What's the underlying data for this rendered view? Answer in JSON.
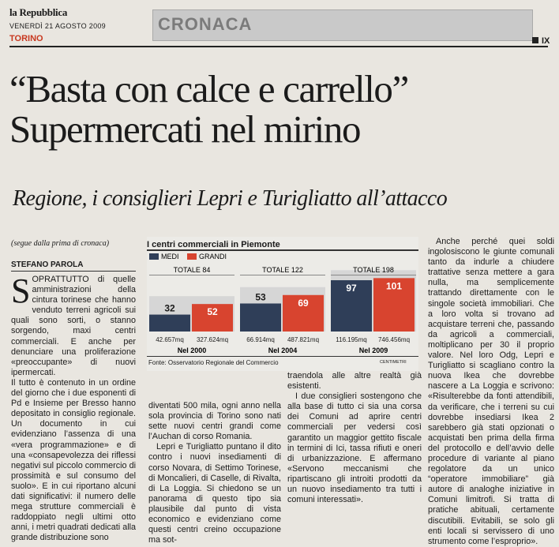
{
  "header": {
    "masthead": "la Repubblica",
    "date": "VENERDÌ 21 AGOSTO 2009",
    "city": "TORINO",
    "section": "CRONACA",
    "page": "IX"
  },
  "article": {
    "headline_line1": "“Basta con calce e carrello”",
    "headline_line2": "Supermercati nel mirino",
    "subheadline": "Regione, i consiglieri Lepri e Turigliatto all’attacco",
    "segue": "(segue dalla prima di cronaca)",
    "byline": "STEFANO PAROLA",
    "col1_dropcap": "S",
    "col1_p1": "OPRATTUTTO di quelle amministrazioni della cintura torinese che hanno venduto terreni agricoli sui quali sono sorti, o stanno sorgendo, maxi centri commerciali. E anche per denunciare una proliferazione «preoccupante» di nuovi ipermercati.",
    "col1_p2": "Il tutto è contenuto in un ordine del giorno che i due esponenti di Pd e Insieme per Bresso hanno depositato in consiglio regionale. Un documento in cui evidenziano l’assenza di una «vera programmazione» e di una «consapevolezza dei riflessi negativi sul piccolo commercio di prossimità e sul consumo del suolo». E in cui riportano alcuni dati significativi: il numero delle mega strutture commerciali è raddoppiato negli ultimi otto anni, i metri quadrati dedicati alla grande distribuzione sono",
    "col2_p1": "diventati 500 mila, ogni anno nella sola provincia di Torino sono nati sette nuovi centri grandi come l’Auchan di corso Romania.",
    "col2_p2": "Lepri e Turigliatto puntano il dito contro i nuovi insediamenti di corso Novara, di Settimo Torinese, di Moncalieri, di Caselle, di Rivalta, di La Loggia. Si chiedono se un panorama di questo tipo sia plausibile dal punto di vista economico e evidenziano come questi centri creino occupazione ma sot-",
    "col3_p1": "traendola alle altre realtà già esistenti.",
    "col3_p2": "I due consiglieri sostengono che alla base di tutto ci sia una corsa dei Comuni ad aprire centri commerciali per vedersi così garantito un maggior gettito fiscale in termini di Ici, tassa rifiuti e oneri di urbanizzazione. E affermano «Servono meccanismi che ripartiscano gli introiti prodotti da un nuovo insediamento tra tutti i comuni interessati».",
    "col4_p1": "Anche perché quei soldi ingolosiscono le giunte comunali tanto da indurle a chiudere trattative senza mettere a gara nulla, ma semplicemente trattando direttamente con le singole società immobiliari. Che a loro volta si trovano ad acquistare terreni che, passando da agricoli a commerciali, moltiplicano per 30 il proprio valore. Nel loro Odg, Lepri e Turigliatto si scagliano contro la nuova Ikea che dovrebbe nascere a La Loggia e scrivono: «Risulterebbe da fonti attendibili, da verificare, che i terreni su cui dovrebbe insediarsi Ikea 2 sarebbero già stati opzionati o acquistati ben prima della firma del protocollo e dell’avvio delle procedure di variante al piano regolatore da un unico “operatore immobiliare” già autore di analoghe iniziative in Comuni limitrofi. Si tratta di pratiche abituali, certamente discutibili. Evitabili, se solo gli enti locali si servissero di uno strumento come l’esproprio»."
  },
  "chart_data": {
    "type": "bar",
    "title": "I centri commerciali in Piemonte",
    "categories": [
      "Nel 2000",
      "Nel 2004",
      "Nel 2009"
    ],
    "totals_labels": [
      "TOTALE 84",
      "TOTALE 122",
      "TOTALE 198"
    ],
    "series": [
      {
        "name": "MEDI",
        "color": "#2f3e58",
        "values": [
          32,
          53,
          97
        ],
        "area_labels": [
          "42.657",
          "66.914",
          "116.195"
        ]
      },
      {
        "name": "GRANDI",
        "color": "#d8442f",
        "values": [
          52,
          69,
          101
        ],
        "area_labels": [
          "327.624",
          "487.821",
          "746.456"
        ]
      }
    ],
    "area_unit": "mq",
    "source": "Fonte: Osservatorio Regionale del Commercio",
    "credit": "CENTIMETRI"
  }
}
